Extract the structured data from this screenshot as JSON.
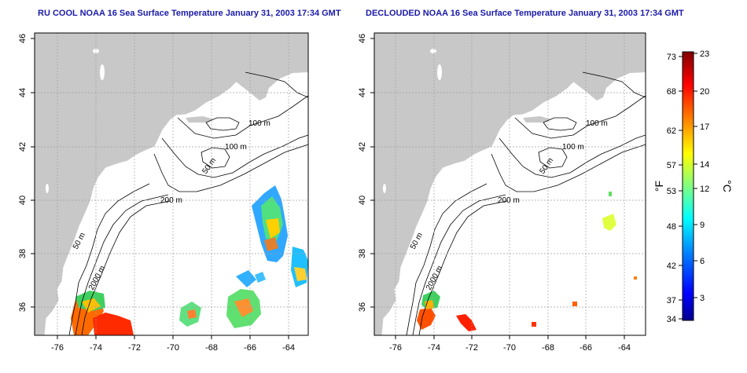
{
  "panels": [
    {
      "title": "RU COOL NOAA 16 Sea Surface Temperature January 31, 2003 17:34 GMT",
      "contour_labels": [
        "100 m",
        "100 m",
        "50 m",
        "200 m",
        "50 m",
        "2000 m"
      ]
    },
    {
      "title": "DECLOUDED NOAA 16 Sea Surface Temperature January 31, 2003 17:34 GMT",
      "contour_labels": [
        "100 m",
        "100 m",
        "50 m",
        "200 m",
        "50 m",
        "2000 m"
      ]
    }
  ],
  "map": {
    "lon_ticks": [
      "-76",
      "-74",
      "-72",
      "-70",
      "-68",
      "-66",
      "-64"
    ],
    "lat_ticks": [
      "36",
      "38",
      "40",
      "42",
      "44",
      "46"
    ],
    "land_color": "#c8c8c8",
    "water_color": "#ffffff",
    "grid": true
  },
  "colorbar": {
    "f_label": "°F",
    "c_label": "°C",
    "f_ticks": [
      "73",
      "68",
      "62",
      "57",
      "53",
      "48",
      "42",
      "37",
      "34"
    ],
    "c_ticks": [
      "23",
      "20",
      "17",
      "14",
      "12",
      "9",
      "6",
      "3"
    ],
    "colors": [
      "#00008f",
      "#0000ff",
      "#0080ff",
      "#00ffff",
      "#80ff80",
      "#ffff00",
      "#ff8000",
      "#ff0000",
      "#800000"
    ]
  }
}
